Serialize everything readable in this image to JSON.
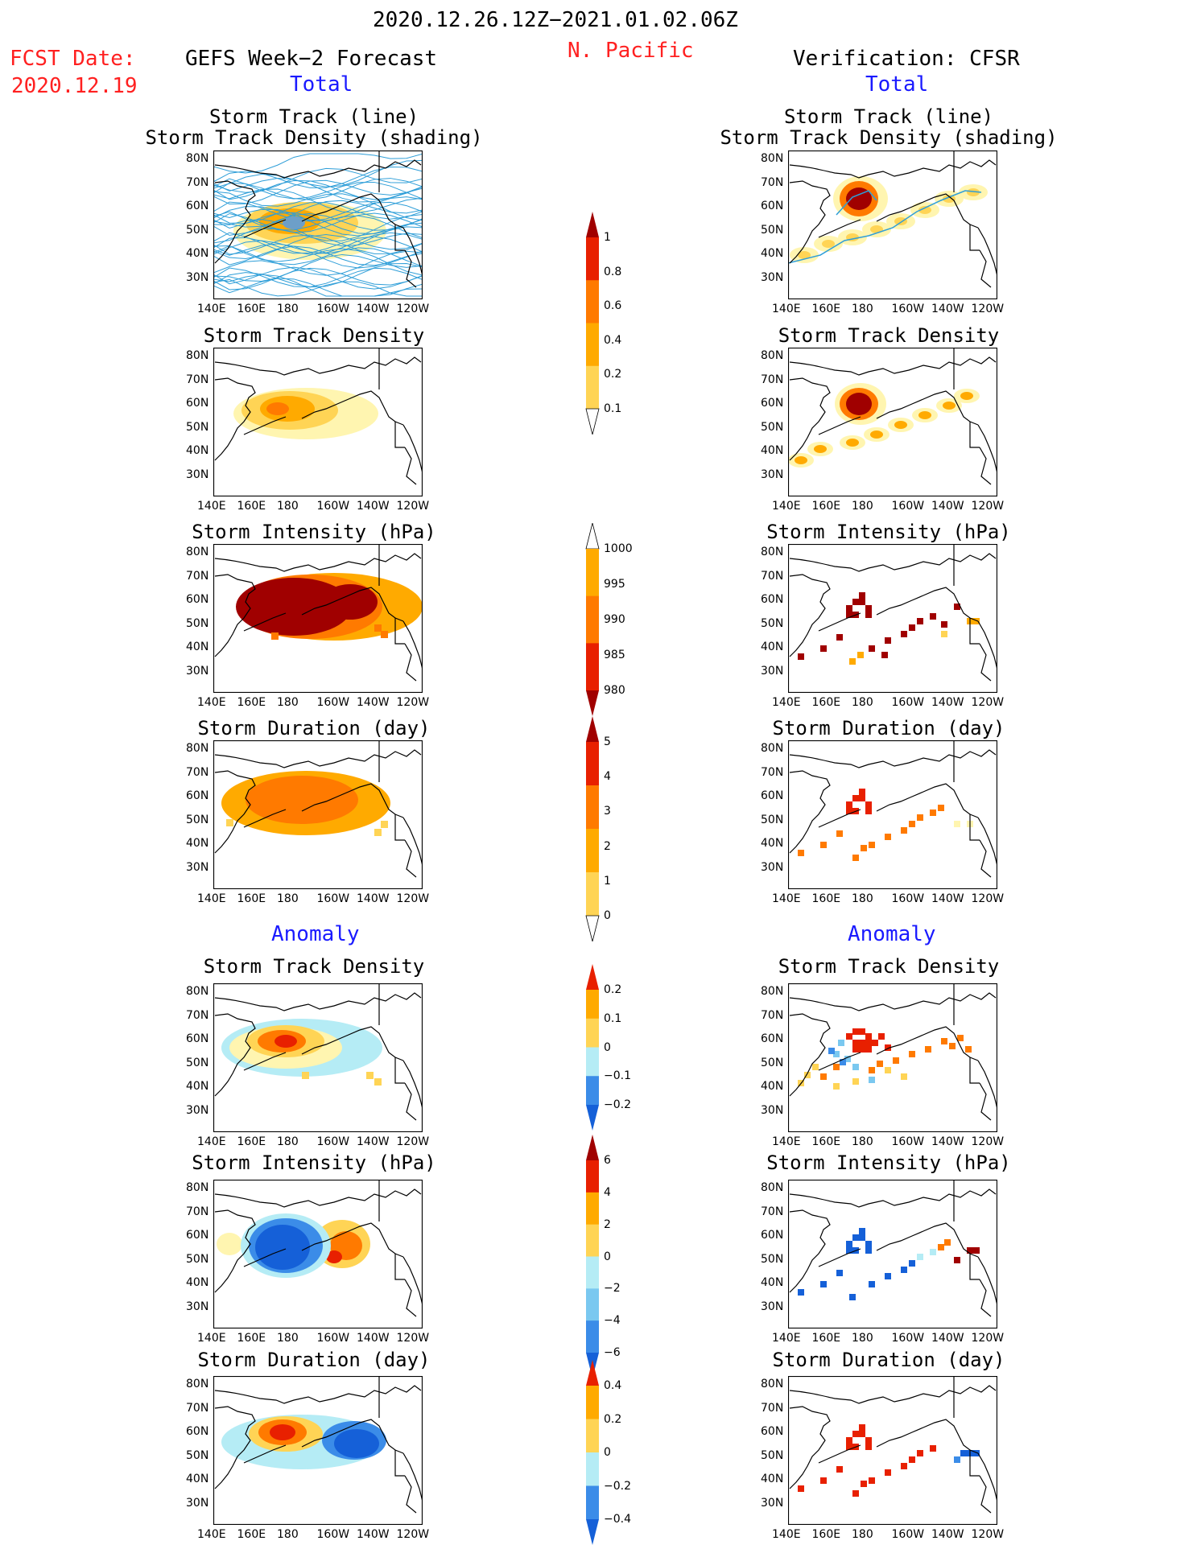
{
  "header": {
    "period": "2020.12.26.12Z−2021.01.02.06Z",
    "region": "N. Pacific",
    "fcst_label": "FCST Date:",
    "fcst_date": "2020.12.19",
    "left_title": "GEFS Week−2 Forecast",
    "right_title": "Verification: CFSR"
  },
  "sections": {
    "total": "Total",
    "anomaly": "Anomaly"
  },
  "panel_titles": {
    "track_line": "Storm Track (line)",
    "track_shading": "Storm Track Density (shading)",
    "density": "Storm Track Density",
    "intensity": "Storm Intensity (hPa)",
    "duration": "Storm Duration (day)"
  },
  "axes": {
    "lat_labels": [
      "80N",
      "70N",
      "60N",
      "50N",
      "40N",
      "30N"
    ],
    "lon_labels": [
      "140E",
      "160E",
      "180",
      "160W",
      "140W",
      "120W"
    ]
  },
  "colorbars": {
    "density_total": [
      "1",
      "0.8",
      "0.6",
      "0.4",
      "0.2",
      "0.1"
    ],
    "intensity_total": [
      "1000",
      "995",
      "990",
      "985",
      "980"
    ],
    "duration_total": [
      "5",
      "4",
      "3",
      "2",
      "1",
      "0"
    ],
    "density_anom": [
      "0.2",
      "0.1",
      "0",
      "−0.1",
      "−0.2"
    ],
    "intensity_anom": [
      "6",
      "4",
      "2",
      "0",
      "−2",
      "−4",
      "−6"
    ],
    "duration_anom": [
      "0.4",
      "0.2",
      "0",
      "−0.2",
      "−0.4"
    ]
  },
  "colors": {
    "yellow_light": "#fff5b0",
    "yellow": "#ffd455",
    "orange_light": "#ffaa00",
    "orange": "#ff7a00",
    "red": "#e82000",
    "darkred": "#a00000",
    "blue_light": "#b5ecf5",
    "blue_mid": "#7ac8f0",
    "blue": "#3b8ce8",
    "blue_dark": "#1560d8",
    "track": "#2e9ed8"
  }
}
